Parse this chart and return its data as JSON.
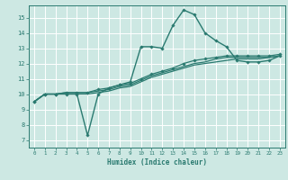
{
  "xlabel": "Humidex (Indice chaleur)",
  "xlim": [
    -0.5,
    23.5
  ],
  "ylim": [
    6.5,
    15.8
  ],
  "yticks": [
    7,
    8,
    9,
    10,
    11,
    12,
    13,
    14,
    15
  ],
  "xticks": [
    0,
    1,
    2,
    3,
    4,
    5,
    6,
    7,
    8,
    9,
    10,
    11,
    12,
    13,
    14,
    15,
    16,
    17,
    18,
    19,
    20,
    21,
    22,
    23
  ],
  "bg_color": "#cde8e3",
  "grid_color": "#b0d5d0",
  "line_color": "#2a7a70",
  "series": [
    {
      "x": [
        0,
        1,
        2,
        3,
        4,
        5,
        6,
        7,
        8,
        9,
        10,
        11,
        12,
        13,
        14,
        15,
        16,
        17,
        18,
        19,
        20,
        21,
        22,
        23
      ],
      "y": [
        9.5,
        10.0,
        10.0,
        10.0,
        10.0,
        7.3,
        10.0,
        10.4,
        10.6,
        10.8,
        13.1,
        13.1,
        13.0,
        14.5,
        15.5,
        15.2,
        14.0,
        13.5,
        13.1,
        12.2,
        12.1,
        12.1,
        12.2,
        12.5
      ],
      "marker": "D",
      "markersize": 1.8,
      "linewidth": 1.0,
      "has_marker": true
    },
    {
      "x": [
        0,
        1,
        2,
        3,
        4,
        5,
        6,
        7,
        8,
        9,
        10,
        11,
        12,
        13,
        14,
        15,
        16,
        17,
        18,
        19,
        20,
        21,
        22,
        23
      ],
      "y": [
        9.5,
        10.0,
        10.0,
        10.0,
        10.0,
        10.0,
        10.1,
        10.2,
        10.4,
        10.5,
        10.8,
        11.1,
        11.3,
        11.5,
        11.7,
        11.9,
        12.0,
        12.1,
        12.2,
        12.3,
        12.3,
        12.3,
        12.4,
        12.5
      ],
      "marker": null,
      "markersize": 0,
      "linewidth": 0.9,
      "has_marker": false
    },
    {
      "x": [
        0,
        1,
        2,
        3,
        4,
        5,
        6,
        7,
        8,
        9,
        10,
        11,
        12,
        13,
        14,
        15,
        16,
        17,
        18,
        19,
        20,
        21,
        22,
        23
      ],
      "y": [
        9.5,
        10.0,
        10.0,
        10.1,
        10.1,
        10.1,
        10.2,
        10.3,
        10.5,
        10.6,
        10.9,
        11.2,
        11.4,
        11.6,
        11.8,
        12.0,
        12.1,
        12.3,
        12.4,
        12.4,
        12.4,
        12.4,
        12.4,
        12.5
      ],
      "marker": null,
      "markersize": 0,
      "linewidth": 0.9,
      "has_marker": false
    },
    {
      "x": [
        0,
        1,
        2,
        3,
        4,
        5,
        6,
        7,
        8,
        9,
        10,
        11,
        12,
        13,
        14,
        15,
        16,
        17,
        18,
        19,
        20,
        21,
        22,
        23
      ],
      "y": [
        9.5,
        10.0,
        10.0,
        10.1,
        10.1,
        10.1,
        10.3,
        10.4,
        10.6,
        10.7,
        11.0,
        11.3,
        11.5,
        11.7,
        12.0,
        12.2,
        12.3,
        12.4,
        12.5,
        12.5,
        12.5,
        12.5,
        12.5,
        12.6
      ],
      "marker": "D",
      "markersize": 1.8,
      "linewidth": 0.9,
      "has_marker": true
    }
  ]
}
